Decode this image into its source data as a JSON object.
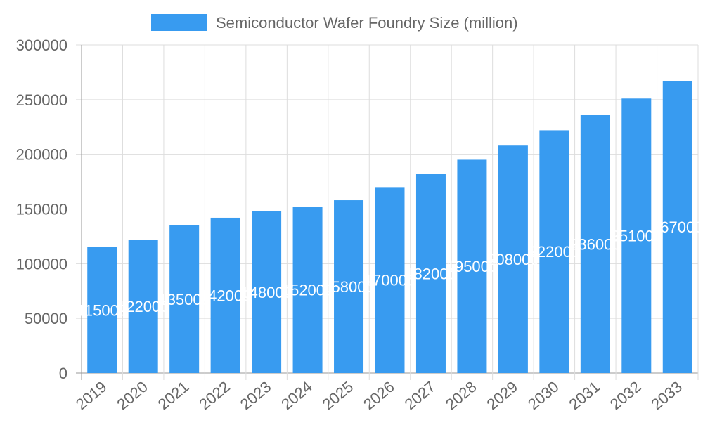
{
  "chart_data": {
    "type": "bar",
    "categories": [
      "2019",
      "2020",
      "2021",
      "2022",
      "2023",
      "2024",
      "2025",
      "2026",
      "2027",
      "2028",
      "2029",
      "2030",
      "2031",
      "2032",
      "2033"
    ],
    "series": [
      {
        "name": "Semiconductor Wafer Foundry Size (million)",
        "values": [
          115000,
          122000,
          135000,
          142000,
          148000,
          152000,
          158000,
          170000,
          182000,
          195000,
          208000,
          222000,
          236000,
          251000,
          267000
        ]
      }
    ],
    "ylim": [
      0,
      300000
    ],
    "yticks": [
      "0",
      "50000",
      "100000",
      "150000",
      "200000",
      "250000",
      "300000"
    ],
    "grid": true,
    "legend": "top",
    "data_labels": true,
    "colors": {
      "bar": "#389bf0",
      "grid": "#dddddd",
      "axis_text": "#666666",
      "data_label": "#ffffff"
    }
  }
}
